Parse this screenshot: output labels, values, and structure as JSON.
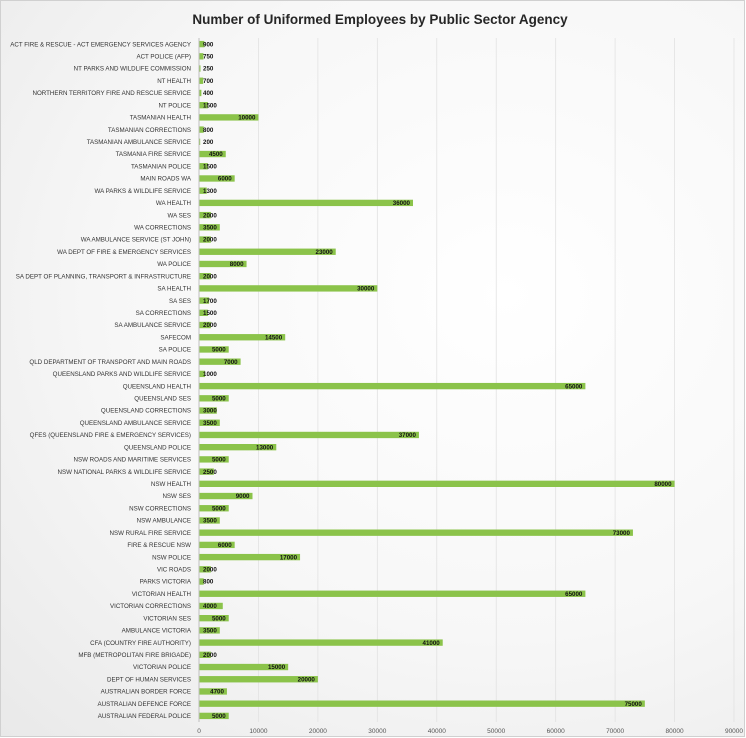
{
  "chart_data": {
    "type": "bar",
    "orientation": "horizontal",
    "title": "Number of Uniformed Employees by Public Sector Agency",
    "xlabel": "",
    "ylabel": "",
    "xlim": [
      0,
      90000
    ],
    "grid": true,
    "legend": "none",
    "bar_color": "#8BC34A",
    "x_ticks": [
      "0",
      "10000",
      "20000",
      "30000",
      "40000",
      "50000",
      "60000",
      "70000",
      "80000",
      "90000"
    ],
    "categories": [
      "ACT FIRE & RESCUE - ACT EMERGENCY SERVICES AGENCY",
      "ACT POLICE (AFP)",
      "NT PARKS AND WILDLIFE COMMISSION",
      "NT HEALTH",
      "NORTHERN TERRITORY FIRE AND RESCUE SERVICE",
      "NT POLICE",
      "TASMANIAN HEALTH",
      "TASMANIAN CORRECTIONS",
      "TASMANIAN AMBULANCE SERVICE",
      "TASMANIA FIRE SERVICE",
      "TASMANIAN POLICE",
      "MAIN ROADS WA",
      "WA PARKS & WILDLIFE SERVICE",
      "WA HEALTH",
      "WA SES",
      "WA CORRECTIONS",
      "WA AMBULANCE SERVICE (ST JOHN)",
      "WA DEPT OF FIRE & EMERGENCY SERVICES",
      "WA POLICE",
      "SA DEPT OF PLANNING, TRANSPORT & INFRASTRUCTURE",
      "SA HEALTH",
      "SA SES",
      "SA CORRECTIONS",
      "SA AMBULANCE SERVICE",
      "SAFECOM",
      "SA POLICE",
      "QLD DEPARTMENT OF TRANSPORT AND MAIN ROADS",
      "QUEENSLAND PARKS AND WILDLIFE SERVICE",
      "QUEENSLAND HEALTH",
      "QUEENSLAND SES",
      "QUEENSLAND CORRECTIONS",
      "QUEENSLAND AMBULANCE SERVICE",
      "QFES (QUEENSLAND FIRE & EMERGENCY SERVICES)",
      "QUEENSLAND POLICE",
      "NSW ROADS AND MARITIME SERVICES",
      "NSW NATIONAL PARKS & WILDLIFE SERVICE",
      "NSW HEALTH",
      "NSW SES",
      "NSW CORRECTIONS",
      "NSW AMBULANCE",
      "NSW RURAL FIRE SERVICE",
      "FIRE & RESCUE NSW",
      "NSW POLICE",
      "VIC ROADS",
      "PARKS VICTORIA",
      "VICTORIAN HEALTH",
      "VICTORIAN CORRECTIONS",
      "VICTORIAN SES",
      "AMBULANCE VICTORIA",
      "CFA (COUNTRY FIRE AUTHORITY)",
      "MFB (METROPOLITAN FIRE BRIGADE)",
      "VICTORIAN POLICE",
      "DEPT OF HUMAN SERVICES",
      "AUSTRALIAN BORDER FORCE",
      "AUSTRALIAN DEFENCE FORCE",
      "AUSTRALIAN FEDERAL POLICE"
    ],
    "values": [
      900,
      750,
      250,
      700,
      400,
      1500,
      10000,
      800,
      200,
      4500,
      1500,
      6000,
      1300,
      36000,
      2000,
      3500,
      2000,
      23000,
      8000,
      2000,
      30000,
      1700,
      1500,
      2000,
      14500,
      5000,
      7000,
      1000,
      65000,
      5000,
      3000,
      3500,
      37000,
      13000,
      5000,
      2500,
      80000,
      9000,
      5000,
      3500,
      73000,
      6000,
      17000,
      2000,
      800,
      65000,
      4000,
      5000,
      3500,
      41000,
      2000,
      15000,
      20000,
      4700,
      75000,
      5000
    ]
  }
}
